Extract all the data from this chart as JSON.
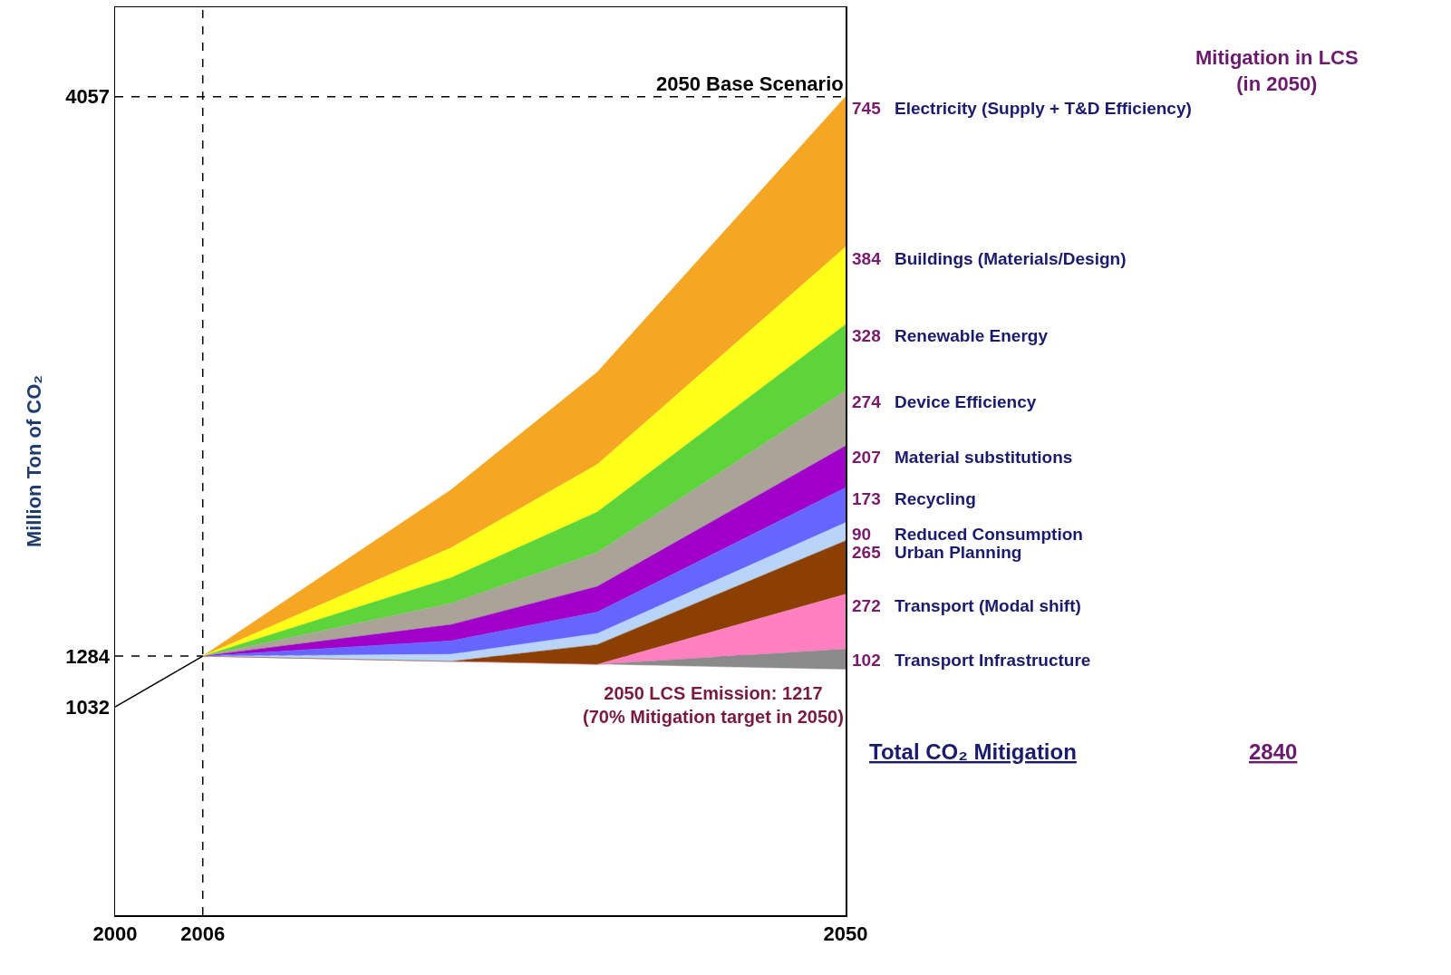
{
  "chart_data": {
    "type": "area",
    "stacked": true,
    "ylabel": "Million Ton of CO₂",
    "x": [
      2006,
      2023,
      2033,
      2050
    ],
    "xlim": [
      2000,
      2050
    ],
    "xticks": [
      2000,
      2006,
      2050
    ],
    "ylim": [
      0,
      4500
    ],
    "yticks": [
      1032,
      1284,
      4057
    ],
    "grid": false,
    "legend": false,
    "series": [
      {
        "color": "#ffffff",
        "values": [
          1284,
          1258,
          1243,
          1217
        ]
      },
      {
        "name": "Transport Infrastructure",
        "color": "#8a8a8a",
        "values": [
          0,
          0,
          0,
          102
        ],
        "value_labels": [
          null,
          null,
          null,
          "102"
        ]
      },
      {
        "name": "Transport (Modal shift)",
        "color": "#ff80c0",
        "values": [
          0,
          0,
          0,
          272
        ],
        "value_labels": [
          null,
          null,
          null,
          "272"
        ]
      },
      {
        "name": "Urban Planning",
        "color": "#8b3f00",
        "values": [
          0,
          0,
          98,
          265
        ],
        "value_labels": [
          null,
          null,
          null,
          "265"
        ]
      },
      {
        "name": "Reduced Consumption",
        "color": "#b8d4f8",
        "values": [
          0,
          35,
          55,
          90
        ],
        "value_labels": [
          null,
          null,
          null,
          "90"
        ]
      },
      {
        "name": "Recycling",
        "color": "#6666ff",
        "values": [
          0,
          67,
          106,
          173
        ],
        "value_labels": [
          null,
          null,
          null,
          "173"
        ]
      },
      {
        "name": "Material substitutions",
        "color": "#a000c8",
        "values": [
          0,
          80,
          127,
          207
        ],
        "value_labels": [
          null,
          null,
          null,
          "207"
        ]
      },
      {
        "name": "Device Efficiency",
        "color": "#aaa398",
        "values": [
          0,
          106,
          168,
          274
        ],
        "value_labels": [
          null,
          null,
          null,
          "274"
        ]
      },
      {
        "name": "Renewable Energy",
        "color": "#5cd43a",
        "values": [
          0,
          127,
          201,
          328
        ],
        "value_labels": [
          null,
          null,
          null,
          "328"
        ]
      },
      {
        "name": "Buildings (Materials/Design)",
        "color": "#ffff1a",
        "values": [
          0,
          148,
          236,
          384
        ],
        "value_labels": [
          null,
          null,
          null,
          "384"
        ]
      },
      {
        "name": "Electricity (Supply + T&D Efficiency)",
        "color": "#f5a623",
        "values": [
          0,
          288,
          457,
          745
        ],
        "value_labels": [
          null,
          null,
          null,
          "745"
        ]
      },
      {
        "type": "line",
        "color": "#000000",
        "x": [
          2000,
          2006
        ],
        "values": [
          1032,
          1284
        ]
      }
    ],
    "ref_lines": [
      {
        "axis": "y",
        "value": 4057,
        "label": "2050 Base Scenario",
        "line_style": "dashed",
        "color": "#000000"
      },
      {
        "axis": "y",
        "value": 1284,
        "line_style": "dashed",
        "color": "#000000"
      },
      {
        "axis": "x",
        "value": 2006,
        "line_style": "dashed",
        "color": "#000000"
      }
    ],
    "annotations": [
      "Mitigation in LCS\n(in 2050)",
      "2050 LCS Emission: 1217\n(70% Mitigation target in 2050)",
      "Total CO₂ Mitigation",
      "2840"
    ]
  }
}
